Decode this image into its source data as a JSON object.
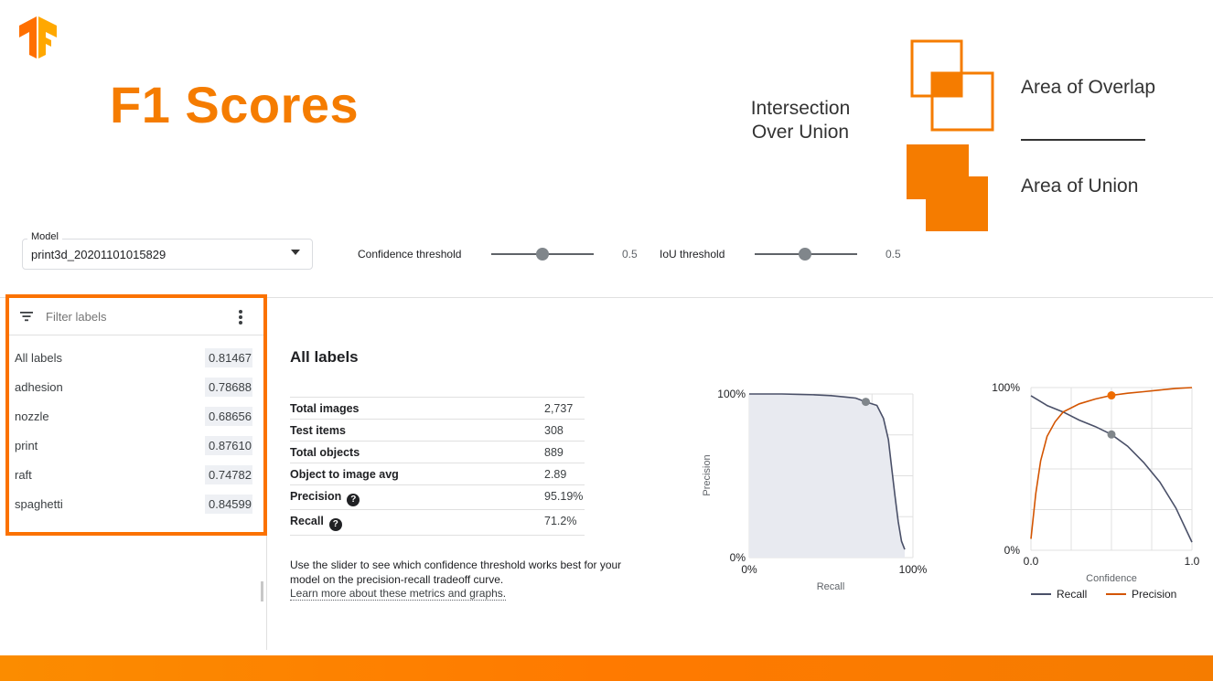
{
  "slide": {
    "title": "F1 Scores",
    "iou_line1": "Intersection",
    "iou_line2": "Over Union",
    "overlap_label": "Area of Overlap",
    "union_label": "Area of Union",
    "accent": "#fb7200"
  },
  "controls": {
    "model_caption": "Model",
    "model_value": "print3d_20201101015829",
    "confidence_label": "Confidence threshold",
    "confidence_value": "0.5",
    "iou_label": "IoU threshold",
    "iou_value": "0.5"
  },
  "label_panel": {
    "filter_placeholder": "Filter labels",
    "labels": [
      {
        "name": "All labels",
        "score": "0.81467"
      },
      {
        "name": "adhesion",
        "score": "0.78688"
      },
      {
        "name": "nozzle",
        "score": "0.68656"
      },
      {
        "name": "print",
        "score": "0.87610"
      },
      {
        "name": "raft",
        "score": "0.74782"
      },
      {
        "name": "spaghetti",
        "score": "0.84599"
      }
    ]
  },
  "summary": {
    "title": "All labels",
    "stats": [
      {
        "name": "Total images",
        "value": "2,737"
      },
      {
        "name": "Test items",
        "value": "308"
      },
      {
        "name": "Total objects",
        "value": "889"
      },
      {
        "name": "Object to image avg",
        "value": "2.89"
      },
      {
        "name": "Precision",
        "value": "95.19%"
      },
      {
        "name": "Recall",
        "value": "71.2%"
      }
    ],
    "hint_line1": "Use the slider to see which confidence threshold works best for your",
    "hint_line2": "model on the precision-recall tradeoff curve.",
    "learn_more": "Learn more about these metrics and graphs."
  },
  "chart_data": [
    {
      "type": "line",
      "xlabel": "Recall",
      "ylabel": "Precision",
      "x_ticks": [
        "0%",
        "100%"
      ],
      "y_ticks": [
        "0%",
        "100%"
      ],
      "xlim": [
        0,
        1
      ],
      "ylim": [
        0,
        1
      ],
      "grid": true,
      "series": [
        {
          "x": [
            0,
            0.1,
            0.2,
            0.3,
            0.4,
            0.5,
            0.6,
            0.65,
            0.712,
            0.78,
            0.82,
            0.85,
            0.87,
            0.89,
            0.91,
            0.93,
            0.95
          ],
          "y": [
            1.0,
            1.0,
            1.0,
            0.998,
            0.995,
            0.99,
            0.98,
            0.975,
            0.952,
            0.93,
            0.85,
            0.72,
            0.55,
            0.38,
            0.22,
            0.1,
            0.05
          ]
        }
      ],
      "marker": {
        "x": 0.712,
        "y": 0.952
      },
      "color": "#4a5068"
    },
    {
      "type": "line",
      "xlabel": "Confidence",
      "x_ticks": [
        "0.0",
        "1.0"
      ],
      "y_ticks": [
        "0%",
        "100%"
      ],
      "xlim": [
        0,
        1
      ],
      "ylim": [
        0,
        1
      ],
      "grid": true,
      "legend": "bottom",
      "series": [
        {
          "name": "Recall",
          "color": "#4a5068",
          "x": [
            0,
            0.1,
            0.2,
            0.3,
            0.4,
            0.5,
            0.6,
            0.7,
            0.8,
            0.9,
            1.0
          ],
          "y": [
            0.95,
            0.89,
            0.85,
            0.8,
            0.76,
            0.712,
            0.64,
            0.54,
            0.42,
            0.26,
            0.05
          ]
        },
        {
          "name": "Precision",
          "color": "#d35400",
          "x": [
            0,
            0.03,
            0.06,
            0.1,
            0.15,
            0.2,
            0.3,
            0.4,
            0.5,
            0.6,
            0.7,
            0.8,
            0.9,
            1.0
          ],
          "y": [
            0.07,
            0.35,
            0.55,
            0.7,
            0.79,
            0.85,
            0.9,
            0.93,
            0.952,
            0.965,
            0.975,
            0.985,
            0.995,
            1.0
          ]
        }
      ],
      "marker_recall": {
        "x": 0.5,
        "y": 0.712
      },
      "marker_precision": {
        "x": 0.5,
        "y": 0.952
      }
    }
  ]
}
